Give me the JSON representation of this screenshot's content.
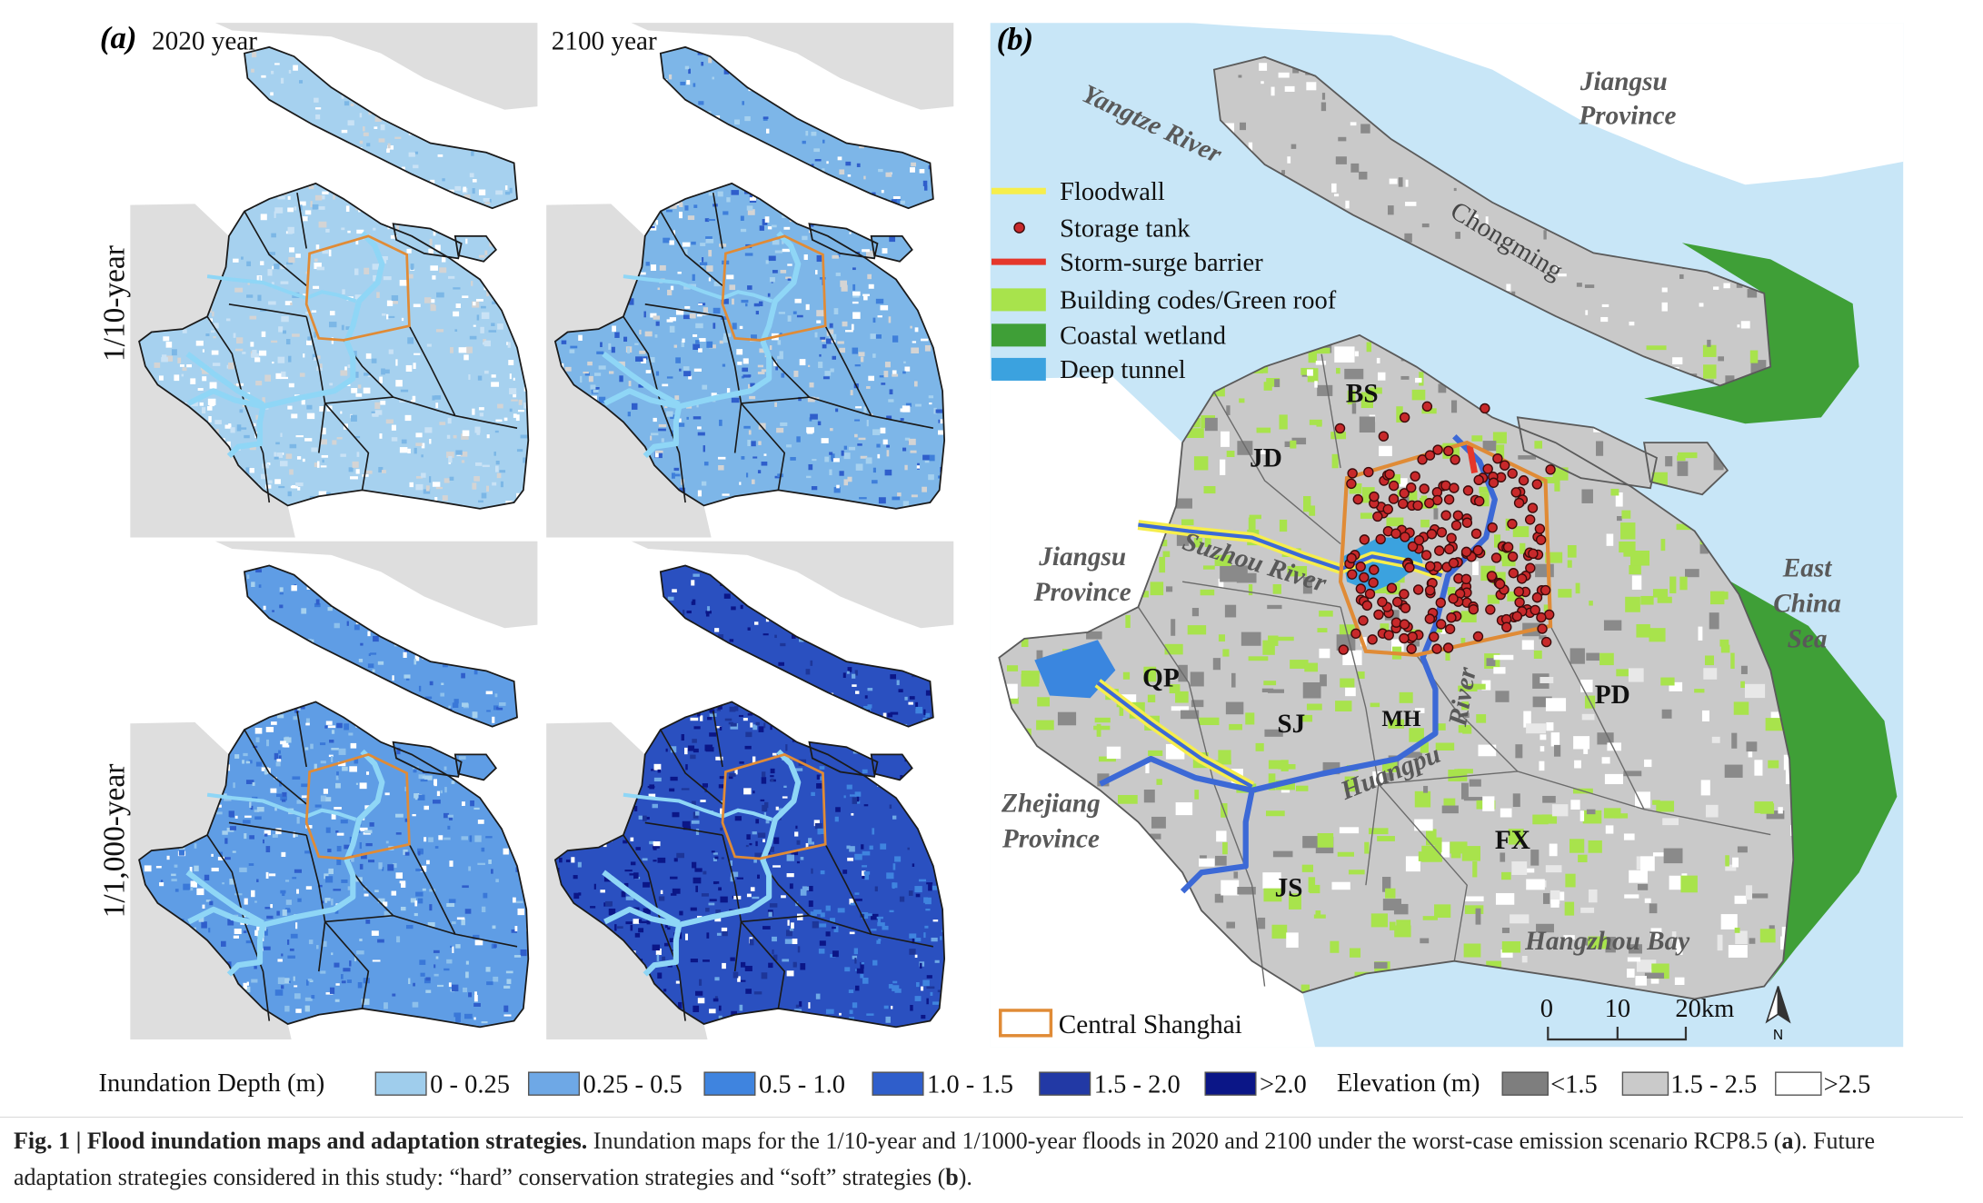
{
  "panel_a": {
    "label": "(a)",
    "columns": [
      "2020 year",
      "2100 year"
    ],
    "rows": [
      "1/10-year",
      "1/1,000-year"
    ]
  },
  "panel_b": {
    "label": "(b)",
    "legend": [
      {
        "label": "Floodwall",
        "color": "#f6ee4c"
      },
      {
        "label": "Storage tank",
        "color": "#c8292b"
      },
      {
        "label": "Storm-surge barrier",
        "color": "#e5372b"
      },
      {
        "label": "Building codes/Green roof",
        "color": "#a8e34c"
      },
      {
        "label": "Coastal wetland",
        "color": "#3f9f37"
      },
      {
        "label": "Deep tunnel",
        "color": "#3ba2df"
      }
    ],
    "central_shanghai": {
      "label": "Central Shanghai",
      "color": "#e08b36"
    },
    "places": [
      {
        "lines": [
          "Jiangsu",
          "Province"
        ]
      },
      {
        "lines": [
          "Yangtze River"
        ]
      },
      {
        "lines": [
          "Chongming"
        ]
      },
      {
        "lines": [
          "East",
          "China",
          "Sea"
        ]
      },
      {
        "lines": [
          "Jiangsu",
          "Province"
        ]
      },
      {
        "lines": [
          "Suzhou River"
        ]
      },
      {
        "lines": [
          "Zhejiang",
          "Province"
        ]
      },
      {
        "lines": [
          "Huangpu"
        ]
      },
      {
        "lines": [
          "River"
        ]
      },
      {
        "lines": [
          "Hangzhou Bay"
        ]
      }
    ],
    "districts": [
      "BS",
      "JD",
      "QP",
      "SJ",
      "MH",
      "PD",
      "FX",
      "JS"
    ],
    "scale_bar": [
      "0",
      "10",
      "20km"
    ],
    "north": "N"
  },
  "legend": {
    "depth_title": "Inundation Depth (m)",
    "depth_classes": [
      {
        "label": "0 - 0.25",
        "color": "#9fcdec"
      },
      {
        "label": "0.25 - 0.5",
        "color": "#6ea8e6"
      },
      {
        "label": "0.5 - 1.0",
        "color": "#3f84df"
      },
      {
        "label": "1.0 - 1.5",
        "color": "#2f5ecb"
      },
      {
        "label": "1.5 - 2.0",
        "color": "#2239a5"
      },
      {
        "label": ">2.0",
        "color": "#0b1687"
      }
    ],
    "elevation_title": "Elevation (m)",
    "elevation_classes": [
      {
        "label": "<1.5",
        "color": "#7e7e7e"
      },
      {
        "label": "1.5 - 2.5",
        "color": "#cacaca"
      },
      {
        "label": ">2.5",
        "color": "#ffffff"
      }
    ]
  },
  "caption": {
    "title": "Fig. 1 | Flood inundation maps and adaptation strategies.",
    "text_1": "Inundation maps for the 1/10-year and 1/1000-year floods in 2020 and 2100 under the worst-case emission scenario RCP8.5 (",
    "panel_1": "a",
    "text_2": "). Future adaptation strategies considered in this study: “hard” conservation strategies and “soft” strategies (",
    "panel_2": "b",
    "text_3": ")."
  }
}
